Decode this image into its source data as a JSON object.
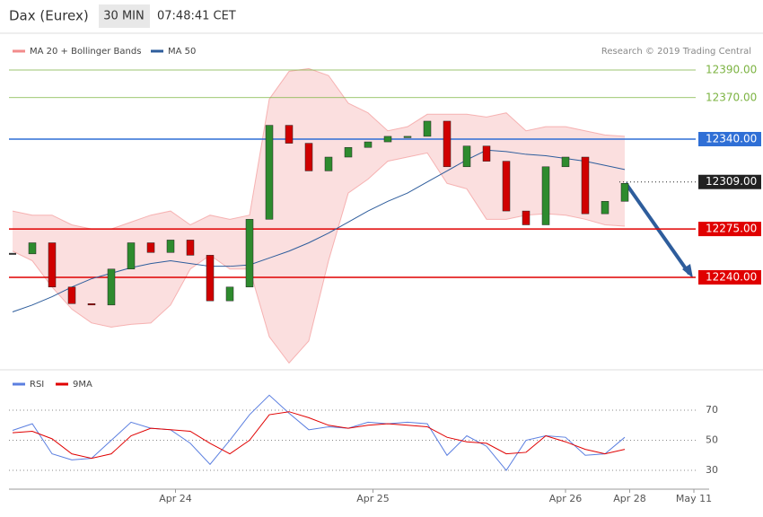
{
  "header": {
    "title": "Dax (Eurex)",
    "interval": "30 MIN",
    "time": "07:48:41 CET"
  },
  "chart_data": [
    {
      "type": "candlestick",
      "annotation": "Research © 2019 Trading Central",
      "x": [
        0,
        4,
        8,
        12,
        16,
        20,
        24,
        28,
        32,
        36,
        40,
        44,
        48,
        52,
        56,
        60,
        64,
        68,
        72,
        76,
        80,
        84,
        88,
        92,
        96,
        100,
        104,
        108,
        112,
        116,
        120,
        124
      ],
      "xlim": [
        -1,
        141
      ],
      "ylim": [
        12173,
        12402
      ],
      "price": {
        "up_color": "#2e8b2e",
        "down_color": "#d00000",
        "values": [
          12257,
          12265,
          12233,
          12221,
          12220,
          12246,
          12265,
          12258,
          12267,
          12256,
          12223,
          12233,
          12282,
          12350,
          12337,
          12317,
          12327,
          12334,
          12338,
          12342,
          12342,
          12353,
          12320,
          12335,
          12324,
          12288,
          12278,
          12320,
          12327,
          12286,
          12295,
          12308
        ]
      },
      "bollinger": {
        "name": "MA 20 + Bollinger Bands",
        "color": "#f28b8b",
        "upper": [
          12288,
          12285,
          12285,
          12278,
          12275,
          12275,
          12280,
          12285,
          12288,
          12278,
          12285,
          12282,
          12285,
          12369,
          12389,
          12391,
          12386,
          12366,
          12359,
          12346,
          12349,
          12358,
          12358,
          12358,
          12356,
          12359,
          12346,
          12349,
          12349,
          12346,
          12343,
          12342
        ],
        "lower": [
          12259,
          12252,
          12233,
          12217,
          12207,
          12204,
          12206,
          12207,
          12220,
          12246,
          12256,
          12246,
          12246,
          12197,
          12178,
          12194,
          12252,
          12301,
          12311,
          12324,
          12327,
          12330,
          12308,
          12304,
          12282,
          12282,
          12285,
          12286,
          12285,
          12282,
          12278,
          12277
        ]
      },
      "series": [
        {
          "name": "MA 50",
          "color": "#2e5d9c",
          "values": [
            12215,
            12220,
            12226,
            12233,
            12239,
            12243,
            12247,
            12250,
            12252,
            12250,
            12248,
            12248,
            12249,
            12254,
            12259,
            12265,
            12272,
            12280,
            12288,
            12295,
            12301,
            12309,
            12317,
            12325,
            12332,
            12331,
            12329,
            12328,
            12326,
            12324,
            12321,
            12318
          ]
        }
      ],
      "yticks": [
        {
          "value": 12390,
          "label": "12390.00",
          "color": "#7cb342",
          "style": "plain"
        },
        {
          "value": 12370,
          "label": "12370.00",
          "color": "#7cb342",
          "style": "plain"
        },
        {
          "value": 12340,
          "label": "12340.00",
          "color": "#2f6fd6",
          "style": "box"
        },
        {
          "value": 12309,
          "label": "12309.00",
          "color": "#222222",
          "style": "dotted"
        },
        {
          "value": 12275,
          "label": "12275.00",
          "color": "#e00000",
          "style": "box"
        },
        {
          "value": 12240,
          "label": "12240.00",
          "color": "#e00000",
          "style": "box"
        }
      ]
    },
    {
      "type": "line",
      "x": [
        0,
        4,
        8,
        12,
        16,
        20,
        24,
        28,
        32,
        36,
        40,
        44,
        48,
        52,
        56,
        60,
        64,
        68,
        72,
        76,
        80,
        84,
        88,
        92,
        96,
        100,
        104,
        108,
        112,
        116,
        120,
        124
      ],
      "xlim": [
        -1,
        141
      ],
      "ylim": [
        20,
        85
      ],
      "yticks": [
        30,
        50,
        70
      ],
      "grid": true,
      "series": [
        {
          "name": "RSI",
          "color": "#5b7fe0",
          "values": [
            56.6,
            61,
            41,
            37,
            38,
            50,
            62,
            58,
            57,
            48,
            34,
            50,
            67,
            80,
            68,
            57,
            59,
            58,
            62,
            61,
            62,
            61,
            40,
            53,
            46,
            30,
            50,
            53,
            52,
            40,
            41,
            52
          ]
        },
        {
          "name": "9MA",
          "color": "#e00000",
          "values": [
            55,
            56,
            51,
            41,
            38,
            41,
            53,
            58,
            57,
            56,
            48,
            41,
            50,
            67,
            69,
            65,
            60,
            58,
            60,
            61,
            60,
            59,
            52,
            49,
            48,
            41,
            42,
            53,
            49,
            44,
            41,
            44
          ]
        }
      ],
      "xticks": [
        {
          "value": 33,
          "label": "Apr 24"
        },
        {
          "value": 73,
          "label": "Apr 25"
        },
        {
          "value": 112,
          "label": "Apr 26"
        },
        {
          "value": 125,
          "label": "Apr 28"
        },
        {
          "value": 138,
          "label": "May 11"
        }
      ]
    }
  ]
}
